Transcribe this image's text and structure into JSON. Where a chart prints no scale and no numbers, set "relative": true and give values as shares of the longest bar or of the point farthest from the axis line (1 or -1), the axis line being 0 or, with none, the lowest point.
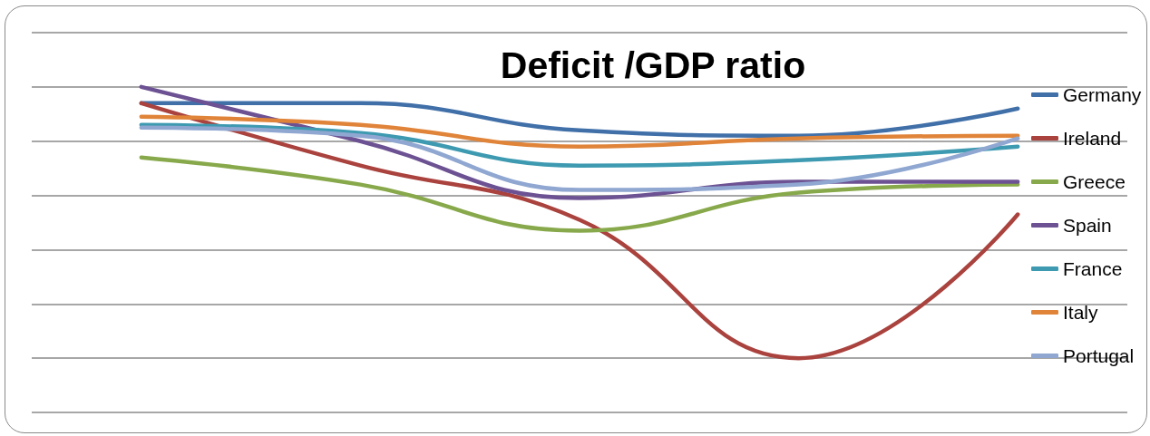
{
  "chart_data": {
    "type": "line",
    "title": "Deficit /GDP ratio",
    "categories": [
      null,
      null,
      null,
      null,
      null
    ],
    "relative": true,
    "series": [
      {
        "name": "Germany",
        "color": "#4170a9",
        "values": [
          0.94,
          0.94,
          0.84,
          0.82,
          0.92
        ]
      },
      {
        "name": "Ireland",
        "color": "#aa423e",
        "values": [
          0.94,
          0.71,
          0.51,
          0,
          0.53
        ]
      },
      {
        "name": "Greece",
        "color": "#88a94b",
        "values": [
          0.74,
          0.64,
          0.47,
          0.61,
          0.64
        ]
      },
      {
        "name": "Spain",
        "color": "#6d5293",
        "values": [
          1,
          0.8,
          0.59,
          0.65,
          0.65
        ]
      },
      {
        "name": "France",
        "color": "#3e9ab1",
        "values": [
          0.86,
          0.83,
          0.71,
          0.73,
          0.78
        ]
      },
      {
        "name": "Italy",
        "color": "#e0843a",
        "values": [
          0.89,
          0.86,
          0.78,
          0.81,
          0.82
        ]
      },
      {
        "name": "Portugal",
        "color": "#8fa7d1",
        "values": [
          0.85,
          0.82,
          0.62,
          0.64,
          0.81
        ]
      }
    ],
    "legend": "right",
    "grid": "y",
    "marker": "none"
  }
}
